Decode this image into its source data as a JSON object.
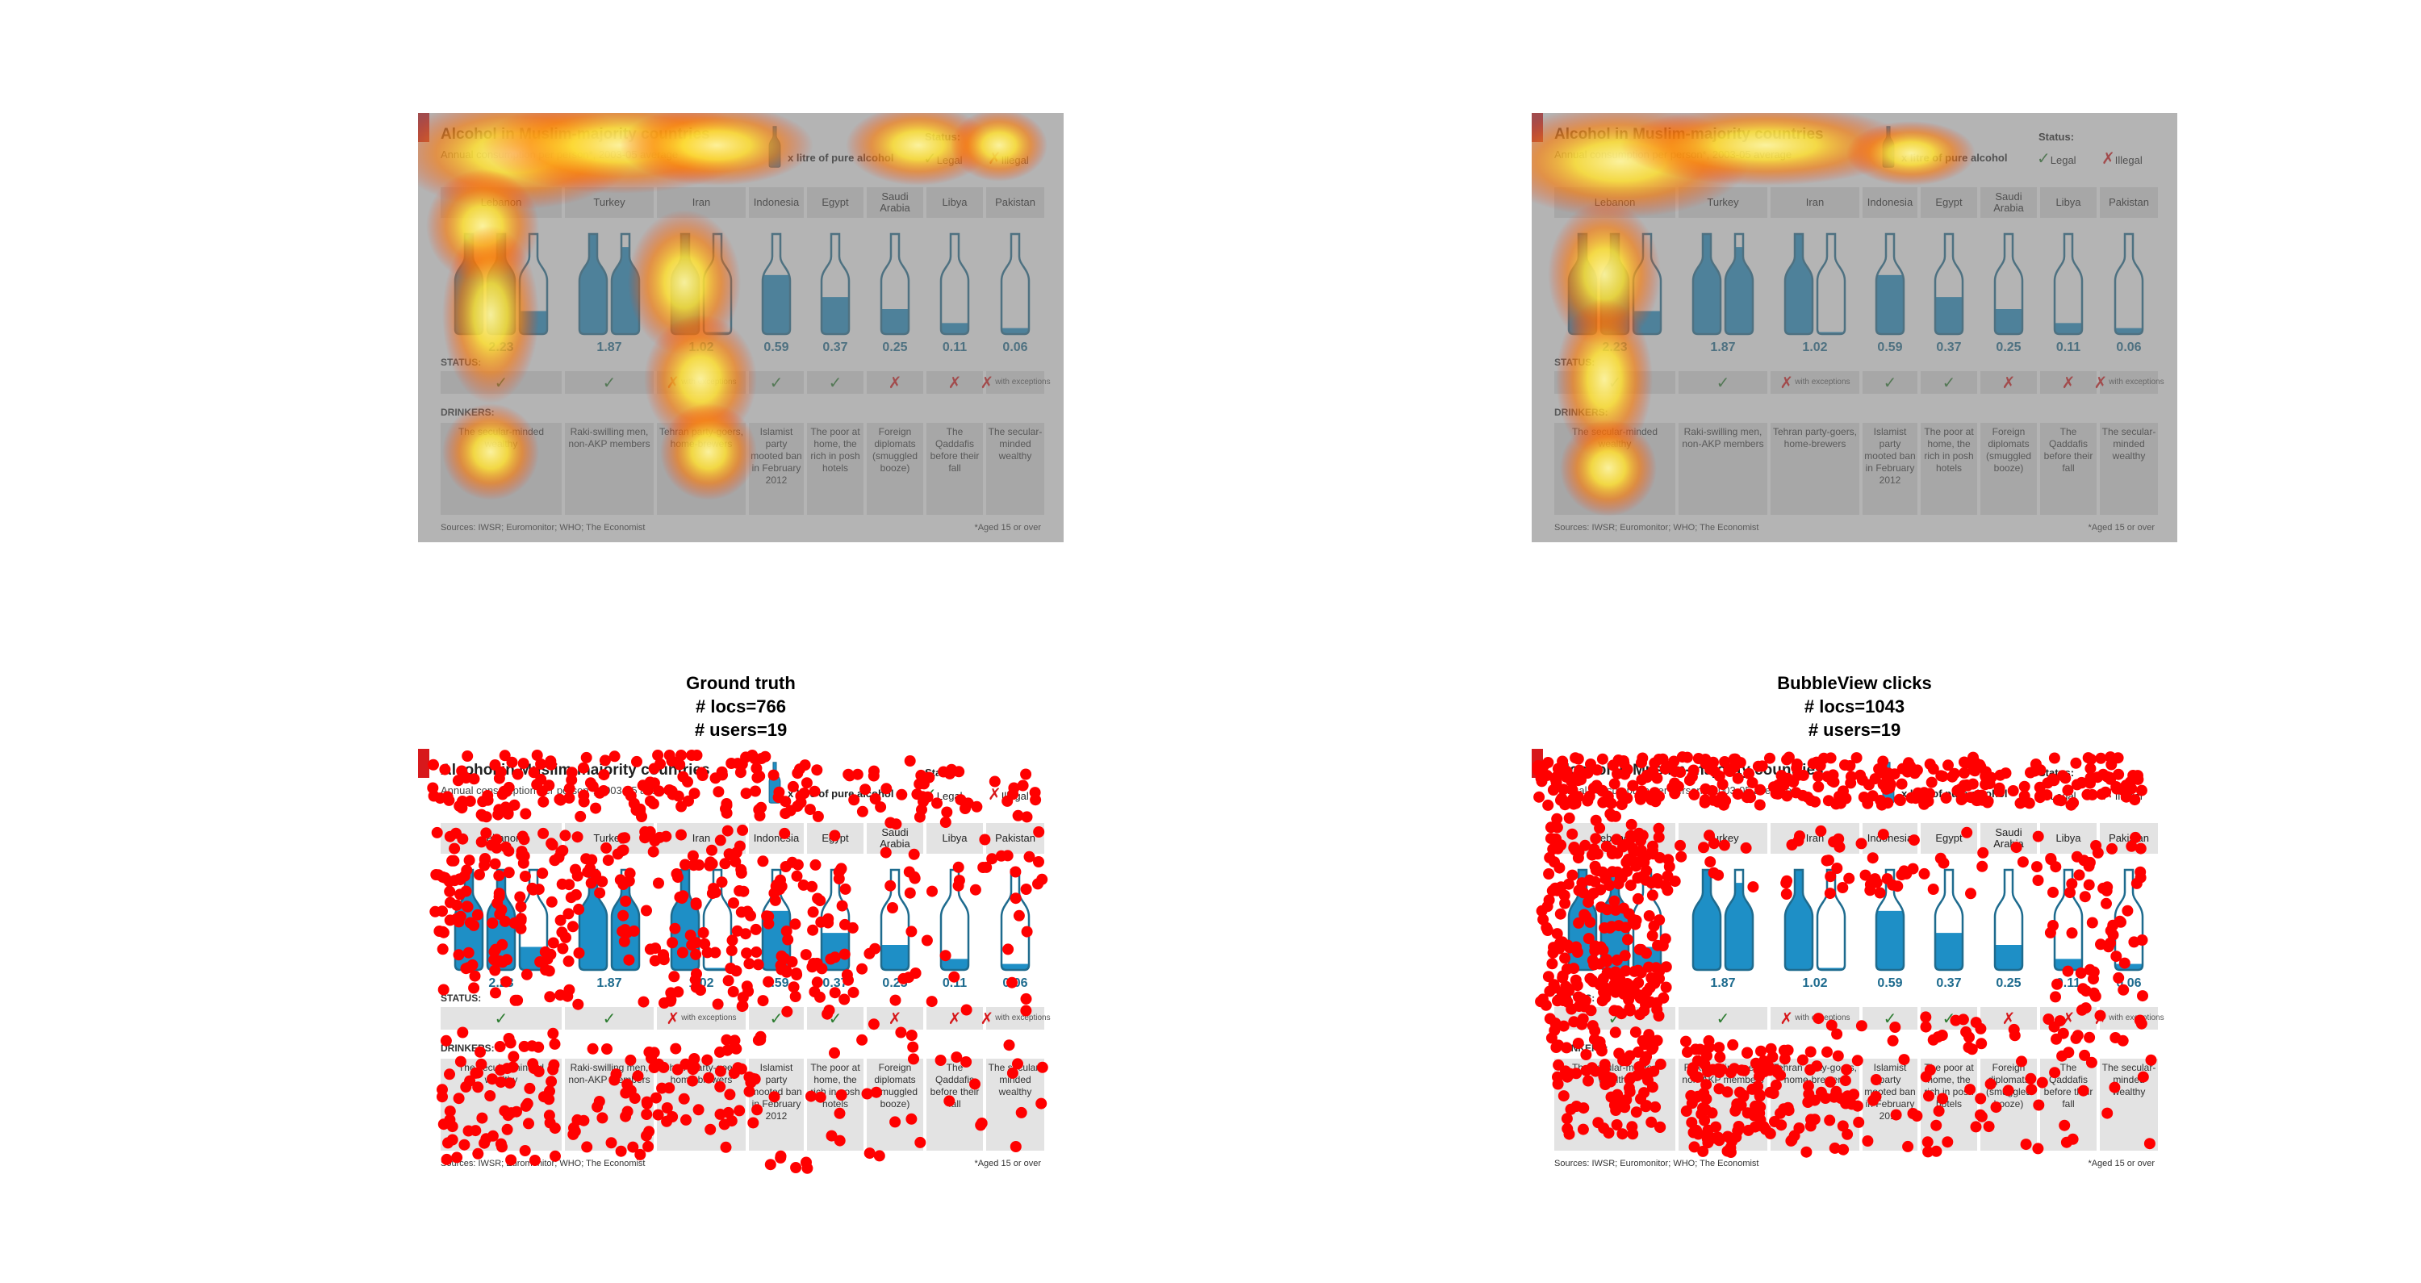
{
  "infographic": {
    "title": "Alcohol in Muslim-majority countries",
    "subtitle": "Annual consumption per person*, 2003-05 average",
    "legend_text": "x litre of pure alcohol",
    "status_heading": "Status:",
    "legal_label": "Legal",
    "illegal_label": "Illegal",
    "status_row_label": "STATUS:",
    "drinkers_row_label": "DRINKERS:",
    "with_exceptions": "with exceptions",
    "sources": "Sources: IWSR; Euromonitor; WHO; The Economist",
    "aged_note": "*Aged 15 or over",
    "countries": [
      {
        "name": "Lebanon",
        "value": "2.23",
        "litres": 2.23,
        "status": "legal",
        "exceptions": false,
        "drinkers": "The secular-minded wealthy"
      },
      {
        "name": "Turkey",
        "value": "1.87",
        "litres": 1.87,
        "status": "legal",
        "exceptions": false,
        "drinkers": "Raki-swilling men, non-AKP members"
      },
      {
        "name": "Iran",
        "value": "1.02",
        "litres": 1.02,
        "status": "illegal",
        "exceptions": true,
        "drinkers": "Tehran party-goers, home-brewers"
      },
      {
        "name": "Indonesia",
        "value": "0.59",
        "litres": 0.59,
        "status": "legal",
        "exceptions": false,
        "drinkers": "Islamist party mooted ban in February 2012"
      },
      {
        "name": "Egypt",
        "value": "0.37",
        "litres": 0.37,
        "status": "legal",
        "exceptions": false,
        "drinkers": "The poor at home, the rich in posh hotels"
      },
      {
        "name": "Saudi Arabia",
        "value": "0.25",
        "litres": 0.25,
        "status": "illegal",
        "exceptions": false,
        "drinkers": "Foreign diplomats (smuggled booze)"
      },
      {
        "name": "Libya",
        "value": "0.11",
        "litres": 0.11,
        "status": "illegal",
        "exceptions": false,
        "drinkers": "The Qaddafis before their fall"
      },
      {
        "name": "Pakistan",
        "value": "0.06",
        "litres": 0.06,
        "status": "illegal",
        "exceptions": true,
        "drinkers": "The secular-minded wealthy"
      }
    ]
  },
  "ground_truth": {
    "line1": "Ground truth",
    "line2": "# locs=766",
    "line3": "# users=19"
  },
  "bubbleview": {
    "line1": "BubbleView clicks",
    "line2": "# locs=1043",
    "line3": "# users=19"
  },
  "colors": {
    "bottle": "#1e8fc6",
    "bottle_outline": "#1e6b8e",
    "click_dot": "#ff0000",
    "brand_red": "#d7191c"
  },
  "heatmap_colors": [
    "#ff3300",
    "#ff9900",
    "#ffee33",
    "#ffffcc"
  ]
}
